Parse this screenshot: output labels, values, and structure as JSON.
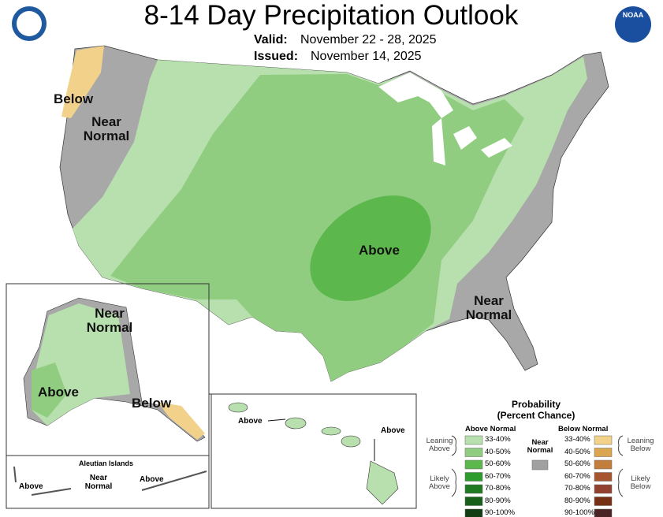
{
  "header": {
    "title": "8-14 Day Precipitation Outlook",
    "valid_label": "Valid:",
    "valid": "November 22 - 28, 2025",
    "issued_label": "Issued:",
    "issued": "November 14, 2025"
  },
  "logos": {
    "noaa": "NOAA"
  },
  "map_labels": {
    "conus": [
      "Below",
      "Near Normal",
      "Above",
      "Near Normal"
    ],
    "alaska": [
      "Near Normal",
      "Above",
      "Below"
    ],
    "aleutians": {
      "title": "Aleutian Islands",
      "labels": [
        "Above",
        "Near Normal",
        "Above"
      ]
    },
    "hawaii": [
      "Above",
      "Above"
    ]
  },
  "legend": {
    "title": "Probability",
    "subtitle": "(Percent Chance)",
    "above": {
      "heading": "Above Normal",
      "entries": [
        {
          "label": "33-40%",
          "color": "#b8e0ae"
        },
        {
          "label": "40-50%",
          "color": "#90cd80"
        },
        {
          "label": "50-60%",
          "color": "#5cb84c"
        },
        {
          "label": "60-70%",
          "color": "#2e9b2e"
        },
        {
          "label": "70-80%",
          "color": "#1f7a22"
        },
        {
          "label": "80-90%",
          "color": "#185f1a"
        },
        {
          "label": "90-100%",
          "color": "#123d12"
        }
      ]
    },
    "below": {
      "heading": "Below Normal",
      "entries": [
        {
          "label": "33-40%",
          "color": "#f2d28a"
        },
        {
          "label": "40-50%",
          "color": "#dba650"
        },
        {
          "label": "50-60%",
          "color": "#c47e3c"
        },
        {
          "label": "60-70%",
          "color": "#a6552e"
        },
        {
          "label": "70-80%",
          "color": "#92412f"
        },
        {
          "label": "80-90%",
          "color": "#763114"
        },
        {
          "label": "90-100%",
          "color": "#4a2424"
        }
      ]
    },
    "near": {
      "label": "Near Normal",
      "color": "#a0a0a0"
    },
    "groups": {
      "leaning_above": "Leaning Above",
      "likely_above": "Likely Above",
      "leaning_below": "Leaning Below",
      "likely_below": "Likely Below"
    }
  }
}
